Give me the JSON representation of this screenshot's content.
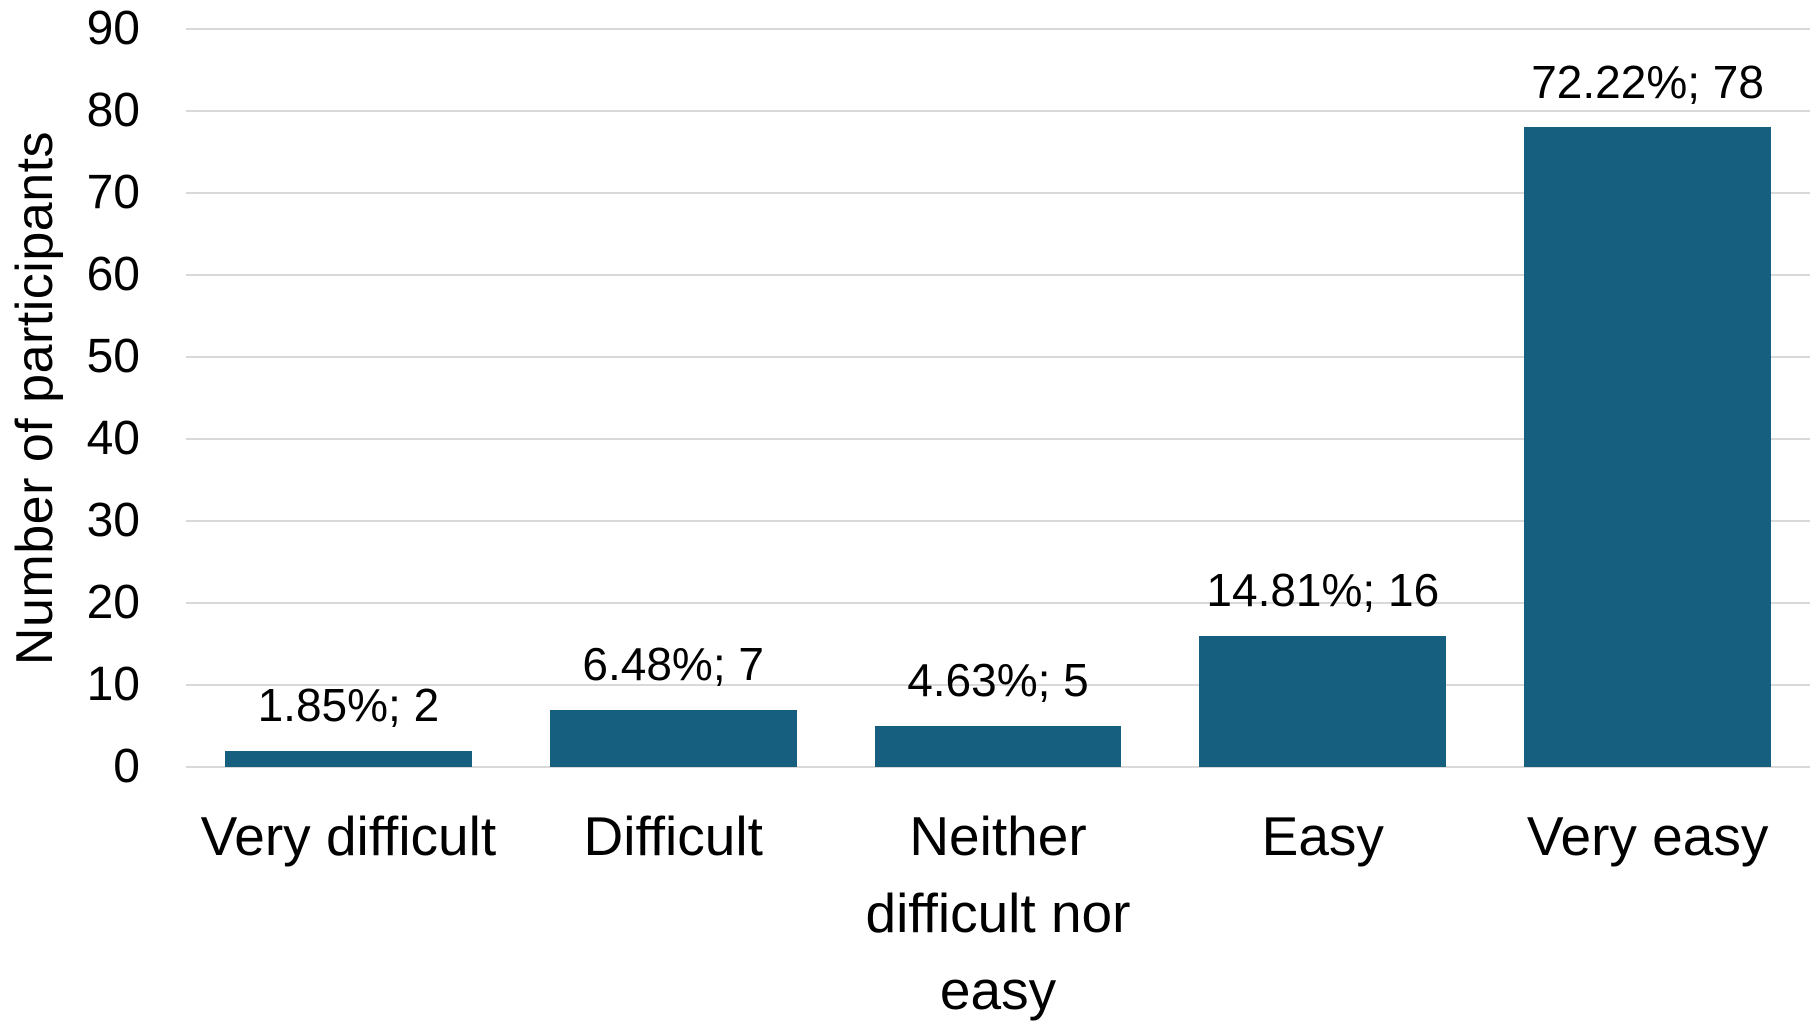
{
  "chart_data": {
    "type": "bar",
    "categories": [
      "Very difficult",
      "Difficult",
      "Neither difficult nor easy",
      "Easy",
      "Very easy"
    ],
    "category_label_lines": [
      [
        "Very difficult"
      ],
      [
        "Difficult"
      ],
      [
        "Neither",
        "difficult nor",
        "easy"
      ],
      [
        "Easy"
      ],
      [
        "Very easy"
      ]
    ],
    "values": [
      2,
      7,
      5,
      16,
      78
    ],
    "percentages": [
      1.85,
      6.48,
      4.63,
      14.81,
      72.22
    ],
    "data_labels": [
      "1.85%; 2",
      "6.48%; 7",
      "4.63%; 5",
      "14.81%; 16",
      "72.22%; 78"
    ],
    "xlabel": "",
    "ylabel": "Number of participants",
    "ylim": [
      0,
      90
    ],
    "ytick_step": 10,
    "grid": "horizontal",
    "legend_position": "none",
    "bar_color": "#175F7F",
    "gridline_color": "#D9D9D9",
    "axis_line_color": "#D9D9D9",
    "text_color": "#000000",
    "background_color": "#FFFFFF"
  }
}
